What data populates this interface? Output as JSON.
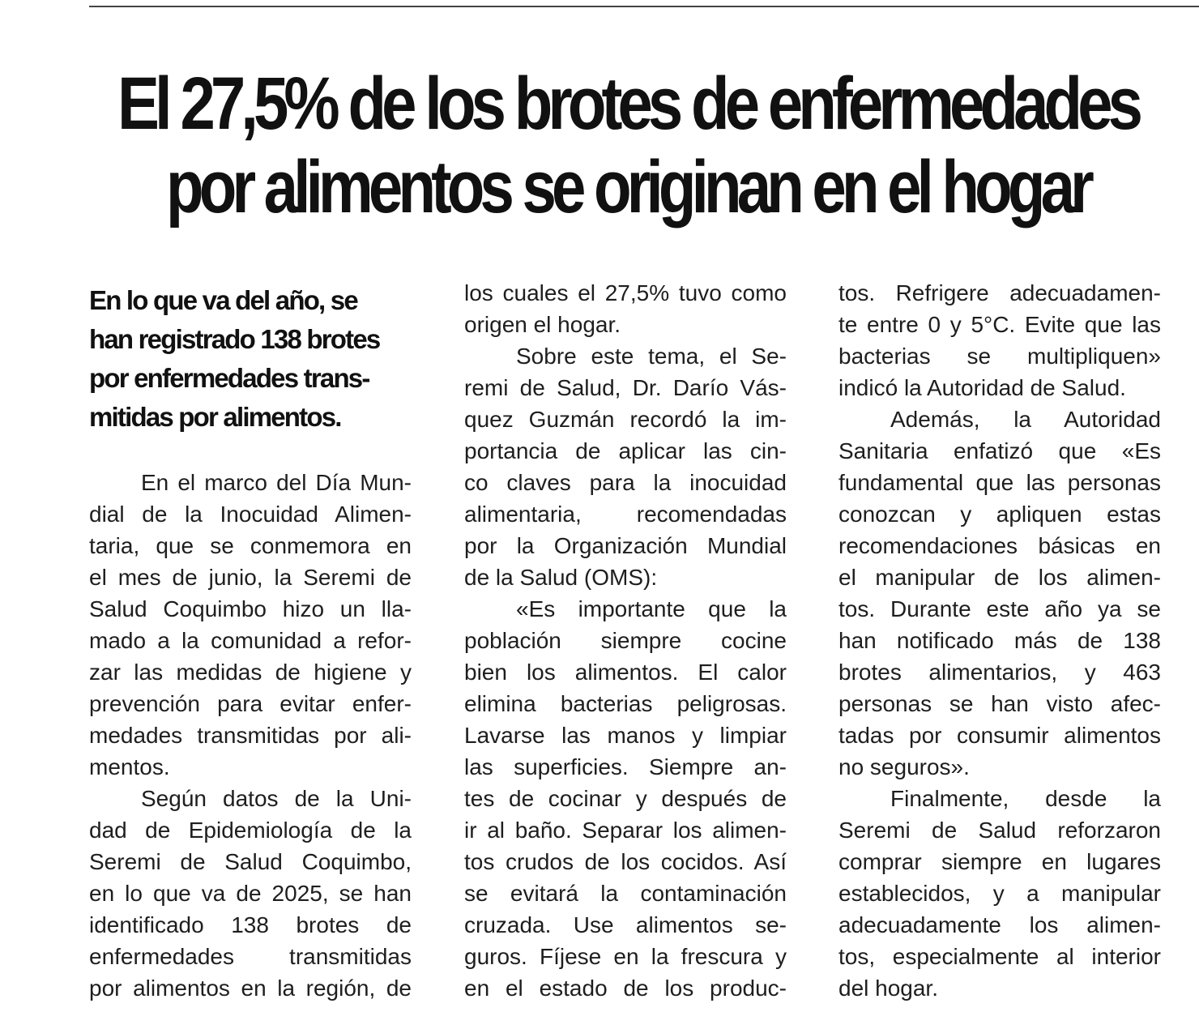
{
  "headline": {
    "line1": "El 27,5% de los brotes de enfermedades",
    "line2": "por alimentos se originan en el hogar"
  },
  "lead": [
    "En lo que va del año, se",
    "han registrado 138 brotes",
    "por enfermedades trans-",
    "mitidas por alimentos."
  ],
  "columns": [
    {
      "paragraphs": [
        {
          "indent": true,
          "end": true,
          "lines": [
            "En el marco del Día Mun-",
            "dial de la Inocuidad Alimen-",
            "taria, que se conmemora en",
            "el mes de junio, la Seremi de",
            "Salud Coquimbo hizo un lla-",
            "mado a la comunidad a refor-",
            "zar las medidas de higiene y",
            "prevención para evitar enfer-",
            "medades transmitidas por ali-",
            "mentos."
          ]
        },
        {
          "indent": true,
          "end": false,
          "lines": [
            "Según datos de la Uni-",
            "dad de Epidemiología de la",
            "Seremi de Salud Coquimbo,",
            "en lo que va de 2025, se han",
            "identificado 138 brotes de",
            "enfermedades transmitidas",
            "por alimentos en la región, de"
          ]
        }
      ]
    },
    {
      "paragraphs": [
        {
          "indent": false,
          "end": true,
          "lines": [
            "los cuales el 27,5% tuvo como",
            "origen el hogar."
          ]
        },
        {
          "indent": true,
          "end": true,
          "lines": [
            "Sobre este tema, el Se-",
            "remi de Salud, Dr. Darío Vás-",
            "quez Guzmán recordó la im-",
            "portancia de aplicar las cin-",
            "co claves para la inocuidad",
            "alimentaria, recomendadas",
            "por la Organización Mundial",
            "de la Salud (OMS):"
          ]
        },
        {
          "indent": true,
          "end": false,
          "lines": [
            "«Es importante que la",
            "población siempre cocine",
            "bien los alimentos. El calor",
            "elimina bacterias peligrosas.",
            "Lavarse las manos y limpiar",
            "las superficies. Siempre an-",
            "tes de cocinar y después de",
            "ir al baño. Separar los alimen-",
            "tos crudos de los cocidos. Así",
            "se evitará la contaminación",
            "cruzada. Use alimentos se-",
            "guros. Fíjese en la frescura y",
            "en el estado de los produc-"
          ]
        }
      ]
    },
    {
      "paragraphs": [
        {
          "indent": false,
          "end": true,
          "lines": [
            "tos. Refrigere adecuadamen-",
            "te entre 0 y 5°C. Evite que las",
            "bacterias se multipliquen»",
            "indicó la Autoridad de Salud."
          ]
        },
        {
          "indent": true,
          "end": true,
          "lines": [
            "Además, la Autoridad",
            "Sanitaria enfatizó que «Es",
            "fundamental que las personas",
            "conozcan y apliquen estas",
            "recomendaciones básicas en",
            "el manipular de los alimen-",
            "tos. Durante este año ya se",
            "han notificado más de 138",
            "brotes alimentarios, y 463",
            "personas se han visto afec-",
            "tadas por consumir alimentos",
            "no seguros»."
          ]
        },
        {
          "indent": true,
          "end": true,
          "lines": [
            "Finalmente, desde la",
            "Seremi de Salud reforzaron",
            "comprar siempre en lugares",
            "establecidos, y a manipular",
            "adecuadamente los alimen-",
            "tos, especialmente al interior",
            "del hogar."
          ]
        }
      ]
    }
  ]
}
